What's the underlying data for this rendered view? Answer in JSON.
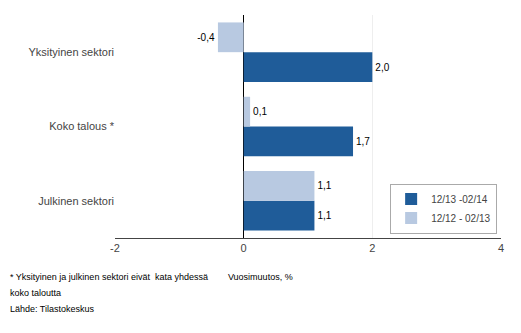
{
  "chart_data": {
    "type": "bar",
    "orientation": "horizontal",
    "categories": [
      "Julkinen sektori",
      "Koko talous *",
      "Yksityinen sektori"
    ],
    "series": [
      {
        "name": "12/13 -02/14",
        "color": "#1F5C99",
        "values": [
          1.1,
          1.7,
          2.0
        ],
        "value_labels": [
          "1,1",
          "1,7",
          "2,0"
        ]
      },
      {
        "name": "12/12 - 02/13",
        "color": "#B8C9E1",
        "values": [
          1.1,
          0.1,
          -0.4
        ],
        "value_labels": [
          "1,1",
          "0,1",
          "-0,4"
        ]
      }
    ],
    "xlim": [
      -2,
      4
    ],
    "xticks": [
      -2,
      0,
      2,
      4
    ],
    "grid": true,
    "legend": "lower right",
    "data_labels": true,
    "annotations": [
      "* Yksityinen ja julkinen sektori eivät  kata yhdessä        Vuosimuutos, %",
      "koko taloutta",
      "Lähde: Tilastokeskus"
    ]
  }
}
